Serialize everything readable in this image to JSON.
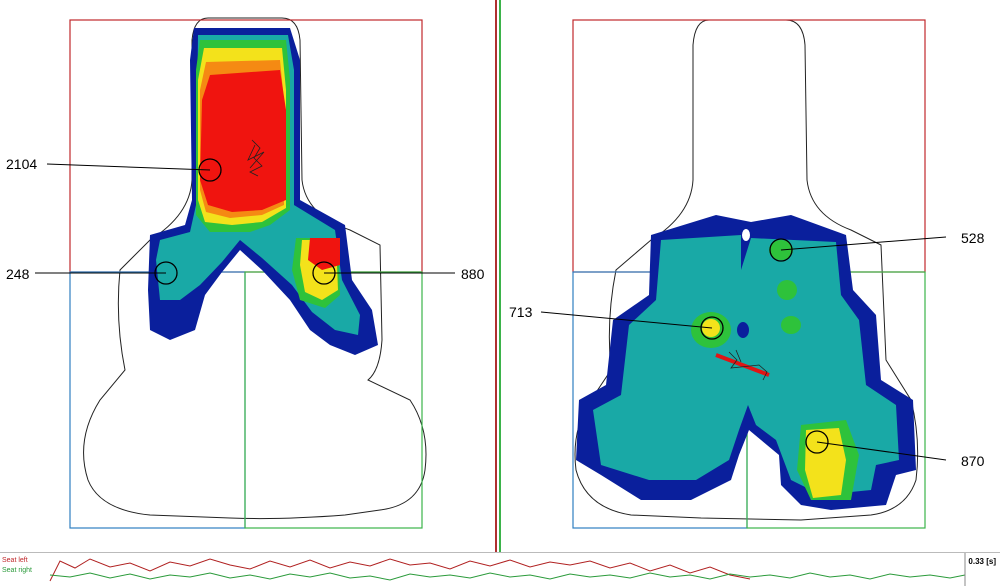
{
  "left_view": {
    "readouts": [
      {
        "id": "top",
        "value": "2104"
      },
      {
        "id": "mid-left",
        "value": "248"
      },
      {
        "id": "mid-right",
        "value": "880"
      }
    ]
  },
  "right_view": {
    "readouts": [
      {
        "id": "top-right",
        "value": "528"
      },
      {
        "id": "mid-left",
        "value": "713"
      },
      {
        "id": "bottom-right",
        "value": "870"
      }
    ]
  },
  "timeline": {
    "legend_red": "Seat left",
    "legend_green": "Seat right",
    "time_readout": "0.33 [s]"
  },
  "colors": {
    "region_top": "#c0282c",
    "region_bottom_left": "#2f7fc0",
    "region_bottom_right": "#3bb34a",
    "pressure_low": "#0a1f9c",
    "pressure_mid": "#19a9a6",
    "pressure_high": "#f3e21b",
    "pressure_max": "#f0140f",
    "marker": "#e01515"
  }
}
